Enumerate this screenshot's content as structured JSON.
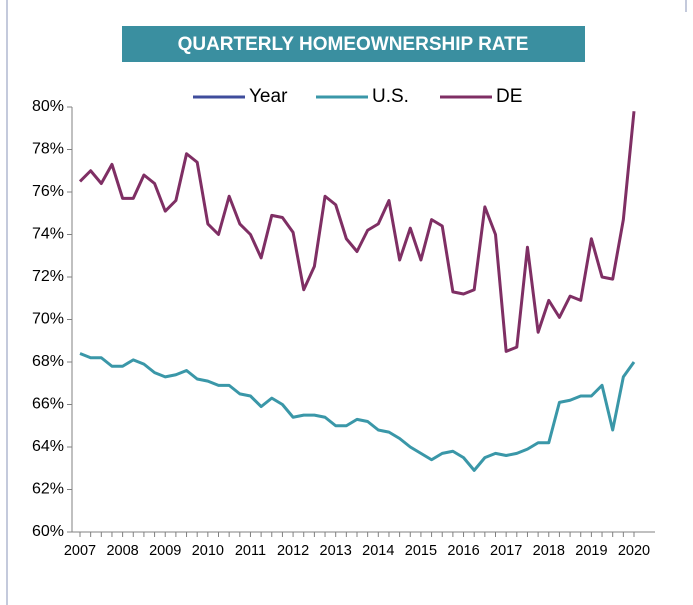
{
  "chart_data": {
    "type": "line",
    "title": "QUARTERLY HOMEOWNERSHIP RATE",
    "categories": [
      "2007",
      null,
      null,
      null,
      "2008",
      null,
      null,
      null,
      "2009",
      null,
      null,
      null,
      "2010",
      null,
      null,
      null,
      "2011",
      null,
      null,
      null,
      "2012",
      null,
      null,
      null,
      "2013",
      null,
      null,
      null,
      "2014",
      null,
      null,
      null,
      "2015",
      null,
      null,
      null,
      "2016",
      null,
      null,
      null,
      "2017",
      null,
      null,
      null,
      "2018",
      null,
      null,
      null,
      "2019",
      null,
      null,
      null,
      "2020"
    ],
    "series": [
      {
        "name": "Year",
        "color": "#3f4d9c",
        "values": [
          null,
          null,
          null,
          null,
          null,
          null,
          null,
          null,
          null,
          null,
          null,
          null,
          null,
          null,
          null,
          null,
          null,
          null,
          null,
          null,
          null,
          null,
          null,
          null,
          null,
          null,
          null,
          null,
          null,
          null,
          null,
          null,
          null,
          null,
          null,
          null,
          null,
          null,
          null,
          null,
          null,
          null,
          null,
          null,
          null,
          null,
          null,
          null,
          null,
          null,
          null,
          null,
          null
        ]
      },
      {
        "name": "U.S.",
        "color": "#3a97a8",
        "values": [
          68.4,
          68.2,
          68.2,
          67.8,
          67.8,
          68.1,
          67.9,
          67.5,
          67.3,
          67.4,
          67.6,
          67.2,
          67.1,
          66.9,
          66.9,
          66.5,
          66.4,
          65.9,
          66.3,
          66.0,
          65.4,
          65.5,
          65.5,
          65.4,
          65.0,
          65.0,
          65.3,
          65.2,
          64.8,
          64.7,
          64.4,
          64.0,
          63.7,
          63.4,
          63.7,
          63.8,
          63.5,
          62.9,
          63.5,
          63.7,
          63.6,
          63.7,
          63.9,
          64.2,
          64.2,
          66.1,
          66.2,
          66.4,
          66.4,
          66.9,
          64.8,
          67.3,
          68.0
        ]
      },
      {
        "name": "DE",
        "color": "#7f2f64",
        "values": [
          76.5,
          77.0,
          76.4,
          77.3,
          75.7,
          75.7,
          76.8,
          76.4,
          75.1,
          75.6,
          77.8,
          77.4,
          74.5,
          74.0,
          75.8,
          74.5,
          74.0,
          72.9,
          74.9,
          74.8,
          74.1,
          71.4,
          72.5,
          75.8,
          75.4,
          73.8,
          73.2,
          74.2,
          74.5,
          75.6,
          72.8,
          74.3,
          72.8,
          74.7,
          74.4,
          71.3,
          71.2,
          71.4,
          75.3,
          74.0,
          68.5,
          68.7,
          73.4,
          69.4,
          70.9,
          70.1,
          71.1,
          70.9,
          73.8,
          72.0,
          71.9,
          74.7,
          79.8
        ]
      }
    ],
    "ylim": [
      60,
      80
    ],
    "yticks": [
      {
        "value": 60,
        "label": "60%"
      },
      {
        "value": 62,
        "label": "62%"
      },
      {
        "value": 64,
        "label": "64%"
      },
      {
        "value": 66,
        "label": "66%"
      },
      {
        "value": 68,
        "label": "68%"
      },
      {
        "value": 70,
        "label": "70%"
      },
      {
        "value": 72,
        "label": "72%"
      },
      {
        "value": 74,
        "label": "74%"
      },
      {
        "value": 76,
        "label": "76%"
      },
      {
        "value": 78,
        "label": "78%"
      },
      {
        "value": 80,
        "label": "80%"
      }
    ],
    "grid": false,
    "title_background": "#3a8fa0"
  }
}
